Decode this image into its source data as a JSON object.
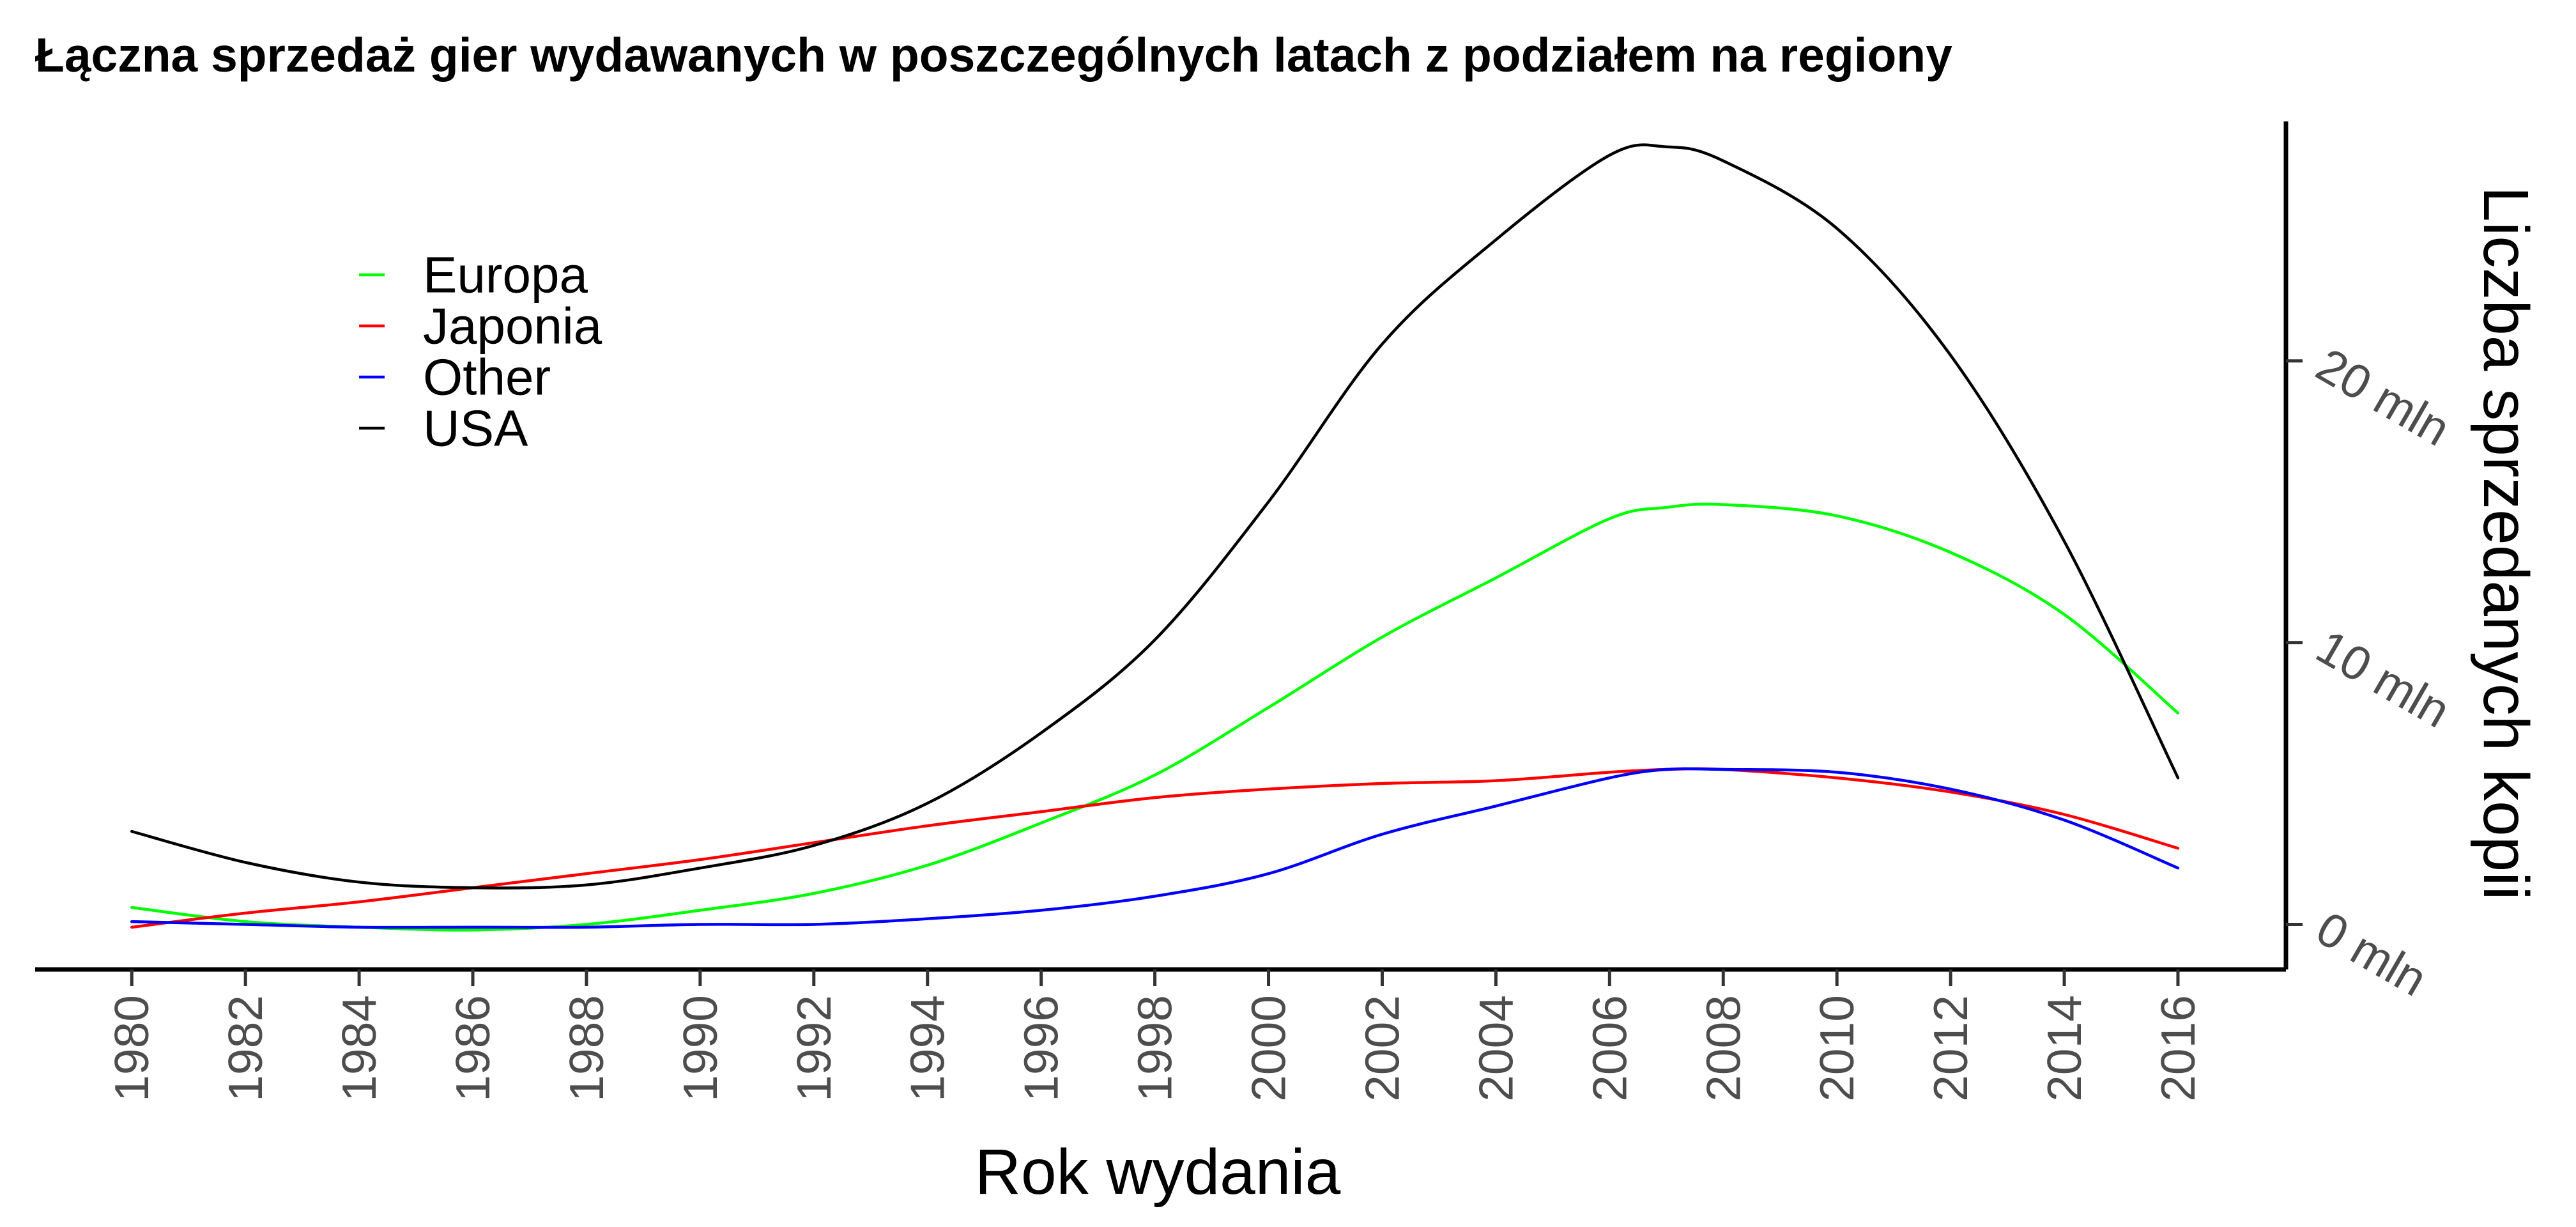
{
  "chart_data": {
    "type": "line",
    "title": "Łączna sprzedaż gier wydawanych w poszczególnych latach z podziałem na regiony",
    "xlabel": "Rok wydania",
    "ylabel": "Liczba sprzedanych kopii",
    "xlim": [
      1978.3,
      2017.9
    ],
    "ylim": [
      -1.6,
      28.5
    ],
    "x_ticks": [
      1980,
      1982,
      1984,
      1986,
      1988,
      1990,
      1992,
      1994,
      1996,
      1998,
      2000,
      2002,
      2004,
      2006,
      2008,
      2010,
      2012,
      2014,
      2016
    ],
    "y_ticks": [
      0,
      10,
      20
    ],
    "y_tick_labels": [
      "0 mln",
      "10 mln",
      "20 mln"
    ],
    "y_axis_position": "right",
    "grid": false,
    "legend_position": "top-left",
    "x": [
      1980,
      1982,
      1984,
      1986,
      1988,
      1990,
      1992,
      1994,
      1996,
      1998,
      2000,
      2002,
      2004,
      2006,
      2007,
      2008,
      2010,
      2012,
      2014,
      2016
    ],
    "series": [
      {
        "name": "Europa",
        "color": "#00ff00",
        "values": [
          0.6,
          0.1,
          -0.1,
          -0.2,
          0.0,
          0.5,
          1.1,
          2.1,
          3.6,
          5.3,
          7.7,
          10.2,
          12.3,
          14.4,
          14.8,
          14.9,
          14.5,
          13.2,
          11.0,
          7.5
        ]
      },
      {
        "name": "Japonia",
        "color": "#ff0000",
        "values": [
          -0.1,
          0.4,
          0.8,
          1.3,
          1.8,
          2.3,
          2.9,
          3.5,
          4.0,
          4.5,
          4.8,
          5.0,
          5.1,
          5.4,
          5.5,
          5.5,
          5.2,
          4.7,
          3.9,
          2.7
        ]
      },
      {
        "name": "Other",
        "color": "#0000ff",
        "values": [
          0.1,
          0.0,
          -0.1,
          -0.1,
          -0.1,
          0.0,
          0.0,
          0.2,
          0.5,
          1.0,
          1.8,
          3.2,
          4.2,
          5.2,
          5.5,
          5.5,
          5.4,
          4.8,
          3.7,
          2.0
        ]
      },
      {
        "name": "USA",
        "color": "#000000",
        "values": [
          3.3,
          2.2,
          1.5,
          1.3,
          1.4,
          2.0,
          2.8,
          4.3,
          6.8,
          10.1,
          15.0,
          20.6,
          24.3,
          27.3,
          27.6,
          27.1,
          24.7,
          20.2,
          13.6,
          5.2
        ]
      }
    ]
  }
}
